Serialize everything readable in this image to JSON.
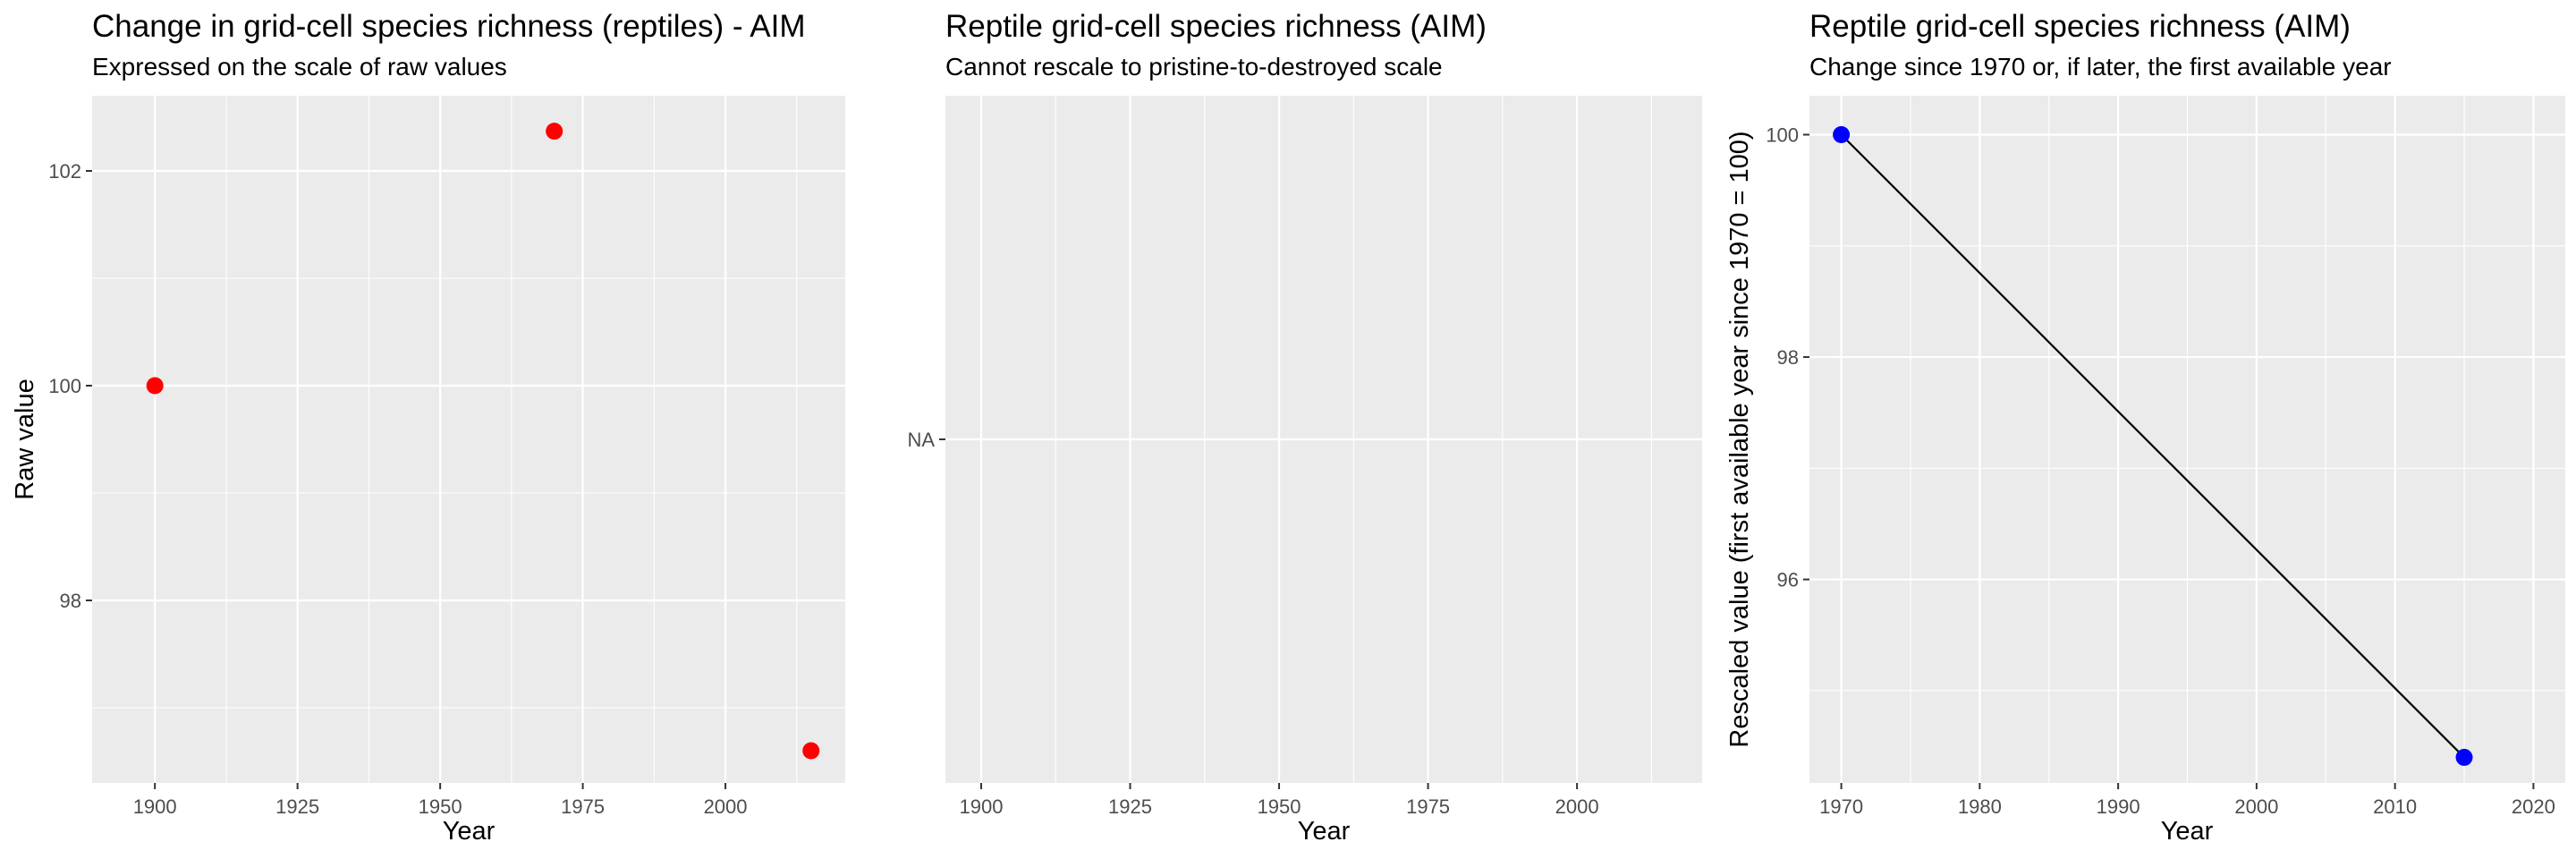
{
  "chart_data": [
    {
      "type": "scatter",
      "title": "Change in grid-cell species richness (reptiles) - AIM",
      "subtitle": "Expressed on the scale of raw values",
      "xlabel": "Year",
      "ylabel": "Raw value",
      "xlim": [
        1889,
        2021
      ],
      "ylim": [
        96.3,
        102.7
      ],
      "x_ticks": [
        1900,
        1925,
        1950,
        1975,
        2000
      ],
      "y_ticks": [
        98,
        100,
        102
      ],
      "grid": true,
      "point_color": "#ff0000",
      "x": [
        1900,
        1970,
        2015
      ],
      "y": [
        100,
        102.37,
        96.6
      ]
    },
    {
      "type": "scatter",
      "title": "Reptile grid-cell species richness (AIM)",
      "subtitle": "Cannot rescale to pristine-to-destroyed scale",
      "xlabel": "Year",
      "ylabel": "",
      "xlim": [
        1894,
        2021
      ],
      "x_ticks": [
        1900,
        1925,
        1950,
        1975,
        2000
      ],
      "y_ticks_text": [
        "NA"
      ],
      "grid": true,
      "x": [],
      "y": []
    },
    {
      "type": "line",
      "title": "Reptile grid-cell species richness (AIM)",
      "subtitle": "Change since 1970 or, if later, the first available year",
      "xlabel": "Year",
      "ylabel": "Rescaled value (first available year since 1970 = 100)",
      "xlim": [
        1967.7,
        2022.3
      ],
      "ylim": [
        94.17,
        100.35
      ],
      "x_ticks": [
        1970,
        1980,
        1990,
        2000,
        2010,
        2020
      ],
      "y_ticks": [
        96,
        98,
        100
      ],
      "grid": true,
      "line_color": "#000000",
      "point_color": "#0000ff",
      "x": [
        1970,
        2015
      ],
      "y": [
        100,
        94.4
      ]
    }
  ]
}
